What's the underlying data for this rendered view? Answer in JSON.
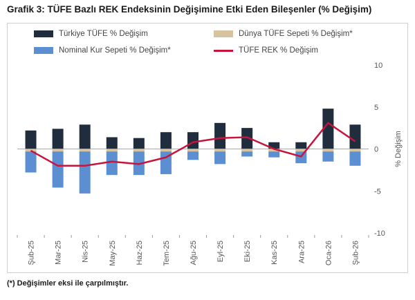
{
  "title": "Grafik 3: TÜFE Bazlı REK Endeksinin Değişimine Etki Eden Bileşenler (% Değişim)",
  "footnote": "(*) Değişimler eksi ile çarpılmıştır.",
  "colors": {
    "turkiye": "#1f2d3d",
    "dunya": "#d8c3a0",
    "kur": "#5b8fd1",
    "rek": "#c8143c",
    "zero": "#a8a8a8"
  },
  "chart_data": {
    "type": "bar",
    "stacked": true,
    "categories": [
      "Şub-25",
      "Mar-25",
      "Nis-25",
      "May-25",
      "Haz-25",
      "Tem-25",
      "Ağu-25",
      "Eyl-25",
      "Eki-25",
      "Kas-25",
      "Ara-25",
      "Oca-26",
      "Şub-26"
    ],
    "series": [
      {
        "name": "Türkiye TÜFE % Değişim",
        "kind": "bar",
        "color": "#1f2d3d",
        "values": [
          2.2,
          2.4,
          2.9,
          1.4,
          1.3,
          2.0,
          2.0,
          3.1,
          2.5,
          0.8,
          0.8,
          4.8,
          2.9
        ]
      },
      {
        "name": "Dünya TÜFE Sepeti % Değişim*",
        "kind": "bar",
        "color": "#d8c3a0",
        "values": [
          -0.3,
          -0.3,
          -0.3,
          -0.3,
          -0.3,
          -0.3,
          -0.3,
          -0.3,
          -0.3,
          -0.3,
          -0.3,
          -0.3,
          -0.3
        ]
      },
      {
        "name": "Nominal Kur Sepeti % Değişim*",
        "kind": "bar",
        "color": "#5b8fd1",
        "values": [
          -2.5,
          -4.3,
          -5.0,
          -2.8,
          -2.8,
          -2.7,
          -1.0,
          -1.5,
          -0.6,
          -0.7,
          -1.4,
          -1.2,
          -1.7
        ]
      },
      {
        "name": "TÜFE REK % Değişim",
        "kind": "line",
        "color": "#c8143c",
        "values": [
          -0.2,
          -2.0,
          -2.0,
          -1.5,
          -1.8,
          -1.0,
          0.8,
          1.3,
          1.4,
          0.0,
          -0.9,
          3.1,
          0.9
        ]
      }
    ],
    "y2label": "% Değişim",
    "ylim": [
      -10,
      10
    ],
    "yticks": [
      10,
      5,
      0,
      -5,
      -10
    ],
    "legend": "top"
  }
}
